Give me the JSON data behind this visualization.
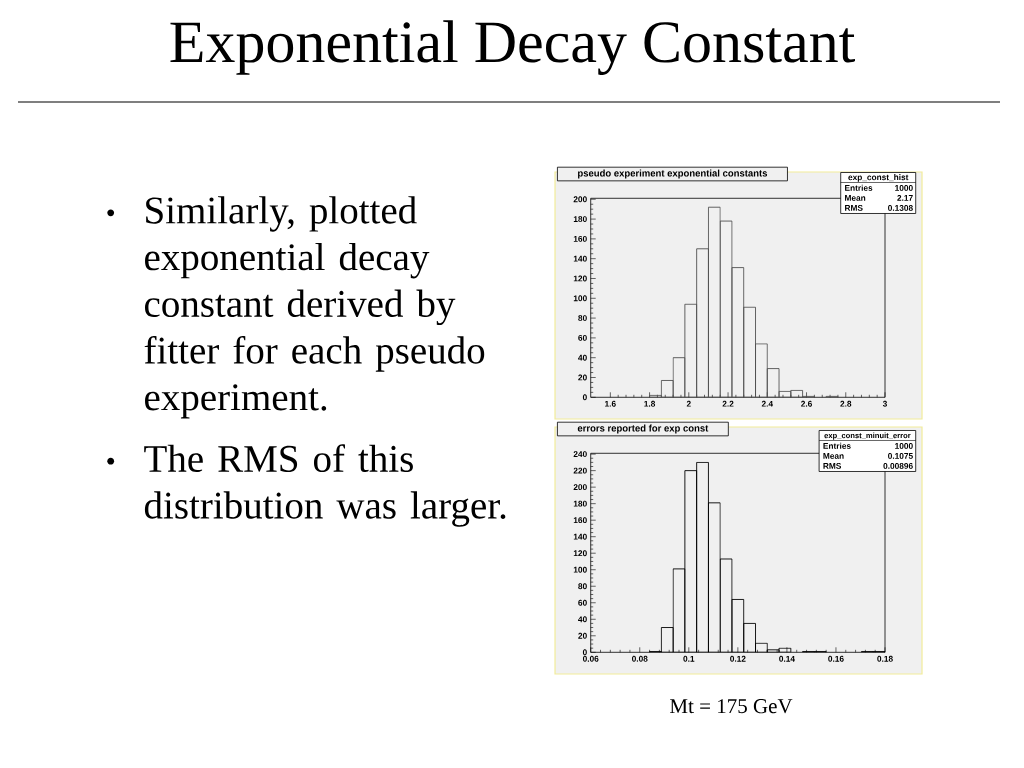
{
  "chart_data": [
    {
      "type": "other",
      "title": "Exponential Decay Constant",
      "annotations": [
        "Similarly, plotted exponential decay constant derived by fitter for each pseudo experiment.",
        "The RMS of this distribution was larger."
      ]
    },
    {
      "type": "histogram",
      "title": "pseudo experiment exponential constants",
      "color": "#505050",
      "bins": [
        1.5,
        1.56,
        1.62,
        1.68,
        1.74,
        1.8,
        1.86,
        1.92,
        1.98,
        2.04,
        2.1,
        2.16,
        2.22,
        2.28,
        2.34,
        2.4,
        2.46,
        2.52,
        2.58,
        2.64,
        2.7,
        2.76,
        2.82,
        2.88,
        2.94,
        3
      ],
      "values": [
        0,
        0,
        0,
        0,
        0,
        2,
        17,
        40,
        94,
        150,
        192,
        178,
        131,
        91,
        54,
        29,
        6,
        7,
        1,
        0,
        1,
        0,
        0,
        0,
        0
      ],
      "xlim": [
        1.5,
        3
      ],
      "ylim": [
        0,
        201
      ],
      "xticks": [
        1.6,
        1.8,
        2,
        2.2,
        2.4,
        2.6,
        2.8,
        3
      ],
      "yticks": [
        0,
        20,
        40,
        60,
        80,
        100,
        120,
        140,
        160,
        180,
        200
      ],
      "annotations": [
        "exp_const_hist",
        "Entries",
        "1000",
        "Mean",
        "2.17",
        "RMS",
        "0.1308"
      ]
    },
    {
      "type": "histogram",
      "title": "errors reported for exp const",
      "color": "#000000",
      "bins": [
        0.06,
        0.0648,
        0.0696,
        0.0744,
        0.0792,
        0.084,
        0.0888,
        0.0936,
        0.0984,
        0.1032,
        0.108,
        0.1128,
        0.1176,
        0.1224,
        0.1272,
        0.132,
        0.1368,
        0.1416,
        0.1464,
        0.1512,
        0.156,
        0.1608,
        0.1656,
        0.1704,
        0.1752,
        0.18
      ],
      "values": [
        0,
        0,
        0,
        0,
        0,
        1,
        30,
        101,
        220,
        230,
        181,
        113,
        64,
        35,
        11,
        3,
        5,
        0,
        1,
        1,
        0,
        0,
        0,
        1,
        1
      ],
      "xlim": [
        0.06,
        0.18
      ],
      "ylim": [
        0,
        241
      ],
      "xticks": [
        0.06,
        0.08,
        0.1,
        0.12,
        0.14,
        0.16,
        0.18
      ],
      "yticks": [
        0,
        20,
        40,
        60,
        80,
        100,
        120,
        140,
        160,
        180,
        200,
        220,
        240
      ],
      "annotations": [
        "exp_const_minuit_error",
        "Entries",
        "1000",
        "Mean",
        "0.1075",
        "RMS",
        "0.00896",
        "Mt = 175 GeV"
      ]
    }
  ]
}
